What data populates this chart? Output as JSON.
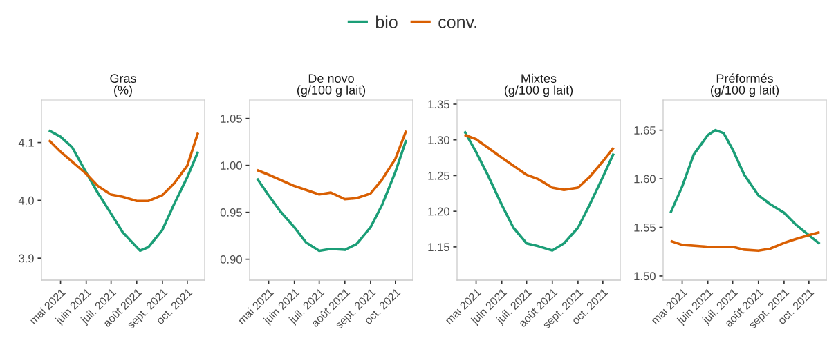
{
  "chart_data": [
    {
      "type": "line",
      "title": "Gras\n(%)",
      "legend": "top",
      "grid": false,
      "xlim": [
        "2021-04-08",
        "2021-10-22"
      ],
      "ylim": [
        3.862,
        4.1735
      ],
      "yticks": [
        {
          "value": 3.9,
          "label": "3.9"
        },
        {
          "value": 4.0,
          "label": "4.0"
        },
        {
          "value": 4.1,
          "label": "4.1"
        }
      ],
      "xticks": [
        {
          "value": "2021-05-01",
          "label": "mai 2021"
        },
        {
          "value": "2021-06-01",
          "label": "juin 2021"
        },
        {
          "value": "2021-07-01",
          "label": "juil. 2021"
        },
        {
          "value": "2021-08-01",
          "label": "août 2021"
        },
        {
          "value": "2021-09-01",
          "label": "sept. 2021"
        },
        {
          "value": "2021-10-01",
          "label": "oct. 2021"
        }
      ],
      "series": [
        {
          "name": "bio",
          "color": "#1b9e77",
          "x": [
            "2021-04-17",
            "2021-05-01",
            "2021-05-15",
            "2021-06-01",
            "2021-06-15",
            "2021-07-01",
            "2021-07-15",
            "2021-08-01",
            "2021-08-05",
            "2021-08-15",
            "2021-09-01",
            "2021-09-15",
            "2021-10-01",
            "2021-10-14"
          ],
          "values": [
            4.121,
            4.11,
            4.092,
            4.048,
            4.013,
            3.977,
            3.945,
            3.919,
            3.913,
            3.919,
            3.949,
            3.993,
            4.04,
            4.084
          ]
        },
        {
          "name": "conv.",
          "color": "#d95f02",
          "x": [
            "2021-04-17",
            "2021-05-01",
            "2021-06-01",
            "2021-06-15",
            "2021-07-01",
            "2021-07-15",
            "2021-08-01",
            "2021-08-15",
            "2021-09-01",
            "2021-09-15",
            "2021-10-01",
            "2021-10-14"
          ],
          "values": [
            4.104,
            4.084,
            4.046,
            4.025,
            4.01,
            4.006,
            3.999,
            3.999,
            4.009,
            4.029,
            4.06,
            4.117
          ]
        }
      ]
    },
    {
      "type": "line",
      "title": "De novo\n(g/100 g lait)",
      "grid": false,
      "xlim": [
        "2021-04-08",
        "2021-10-22"
      ],
      "ylim": [
        0.8777,
        1.0696
      ],
      "yticks": [
        {
          "value": 0.9,
          "label": "0.90"
        },
        {
          "value": 0.95,
          "label": "0.95"
        },
        {
          "value": 1.0,
          "label": "1.00"
        },
        {
          "value": 1.05,
          "label": "1.05"
        }
      ],
      "xticks": [
        {
          "value": "2021-05-01",
          "label": "mai 2021"
        },
        {
          "value": "2021-06-01",
          "label": "juin 2021"
        },
        {
          "value": "2021-07-01",
          "label": "juil. 2021"
        },
        {
          "value": "2021-08-01",
          "label": "août 2021"
        },
        {
          "value": "2021-09-01",
          "label": "sept. 2021"
        },
        {
          "value": "2021-10-01",
          "label": "oct. 2021"
        }
      ],
      "series": [
        {
          "name": "bio",
          "color": "#1b9e77",
          "x": [
            "2021-04-17",
            "2021-05-01",
            "2021-05-15",
            "2021-06-01",
            "2021-06-15",
            "2021-07-01",
            "2021-07-15",
            "2021-08-01",
            "2021-08-15",
            "2021-09-01",
            "2021-09-15",
            "2021-10-01",
            "2021-10-14"
          ],
          "values": [
            0.986,
            0.968,
            0.951,
            0.934,
            0.918,
            0.909,
            0.911,
            0.91,
            0.916,
            0.934,
            0.958,
            0.993,
            1.027
          ]
        },
        {
          "name": "conv.",
          "color": "#d95f02",
          "x": [
            "2021-04-17",
            "2021-05-01",
            "2021-06-01",
            "2021-07-01",
            "2021-07-15",
            "2021-08-01",
            "2021-08-15",
            "2021-09-01",
            "2021-09-15",
            "2021-10-01",
            "2021-10-14"
          ],
          "values": [
            0.995,
            0.99,
            0.978,
            0.969,
            0.971,
            0.964,
            0.965,
            0.97,
            0.985,
            1.007,
            1.037
          ]
        }
      ]
    },
    {
      "type": "line",
      "title": "Mixtes\n(g/100 g lait)",
      "grid": false,
      "xlim": [
        "2021-04-08",
        "2021-10-22"
      ],
      "ylim": [
        1.1035,
        1.3558
      ],
      "yticks": [
        {
          "value": 1.15,
          "label": "1.15"
        },
        {
          "value": 1.2,
          "label": "1.20"
        },
        {
          "value": 1.25,
          "label": "1.25"
        },
        {
          "value": 1.3,
          "label": "1.30"
        },
        {
          "value": 1.35,
          "label": "1.35"
        }
      ],
      "xticks": [
        {
          "value": "2021-05-01",
          "label": "mai 2021"
        },
        {
          "value": "2021-06-01",
          "label": "juin 2021"
        },
        {
          "value": "2021-07-01",
          "label": "juil. 2021"
        },
        {
          "value": "2021-08-01",
          "label": "août 2021"
        },
        {
          "value": "2021-09-01",
          "label": "sept. 2021"
        },
        {
          "value": "2021-10-01",
          "label": "oct. 2021"
        }
      ],
      "series": [
        {
          "name": "bio",
          "color": "#1b9e77",
          "x": [
            "2021-04-17",
            "2021-05-01",
            "2021-05-15",
            "2021-06-01",
            "2021-06-15",
            "2021-07-01",
            "2021-07-15",
            "2021-08-01",
            "2021-08-15",
            "2021-09-01",
            "2021-09-15",
            "2021-10-01",
            "2021-10-14"
          ],
          "values": [
            1.312,
            1.283,
            1.251,
            1.209,
            1.177,
            1.155,
            1.151,
            1.145,
            1.155,
            1.177,
            1.209,
            1.248,
            1.281
          ]
        },
        {
          "name": "conv.",
          "color": "#d95f02",
          "x": [
            "2021-04-17",
            "2021-05-01",
            "2021-06-01",
            "2021-07-01",
            "2021-07-15",
            "2021-08-01",
            "2021-08-15",
            "2021-09-01",
            "2021-09-15",
            "2021-10-01",
            "2021-10-14"
          ],
          "values": [
            1.307,
            1.301,
            1.275,
            1.251,
            1.245,
            1.233,
            1.23,
            1.233,
            1.248,
            1.27,
            1.289
          ]
        }
      ]
    },
    {
      "type": "line",
      "title": "Préformés\n(g/100 g lait)",
      "grid": false,
      "xlim": [
        "2021-04-08",
        "2021-10-22"
      ],
      "ylim": [
        1.4957,
        1.681
      ],
      "yticks": [
        {
          "value": 1.5,
          "label": "1.50"
        },
        {
          "value": 1.55,
          "label": "1.55"
        },
        {
          "value": 1.6,
          "label": "1.60"
        },
        {
          "value": 1.65,
          "label": "1.65"
        }
      ],
      "xticks": [
        {
          "value": "2021-05-01",
          "label": "mai 2021"
        },
        {
          "value": "2021-06-01",
          "label": "juin 2021"
        },
        {
          "value": "2021-07-01",
          "label": "juil. 2021"
        },
        {
          "value": "2021-08-01",
          "label": "août 2021"
        },
        {
          "value": "2021-09-01",
          "label": "sept. 2021"
        },
        {
          "value": "2021-10-01",
          "label": "oct. 2021"
        }
      ],
      "series": [
        {
          "name": "bio",
          "color": "#1b9e77",
          "x": [
            "2021-04-17",
            "2021-05-01",
            "2021-05-15",
            "2021-06-01",
            "2021-06-10",
            "2021-06-20",
            "2021-07-01",
            "2021-07-15",
            "2021-08-01",
            "2021-08-15",
            "2021-09-01",
            "2021-09-15",
            "2021-10-01",
            "2021-10-14"
          ],
          "values": [
            1.565,
            1.592,
            1.625,
            1.645,
            1.65,
            1.647,
            1.63,
            1.604,
            1.583,
            1.574,
            1.565,
            1.553,
            1.542,
            1.533
          ]
        },
        {
          "name": "conv.",
          "color": "#d95f02",
          "x": [
            "2021-04-17",
            "2021-05-01",
            "2021-06-01",
            "2021-07-01",
            "2021-07-15",
            "2021-08-01",
            "2021-08-15",
            "2021-09-01",
            "2021-09-15",
            "2021-10-01",
            "2021-10-14"
          ],
          "values": [
            1.536,
            1.532,
            1.53,
            1.53,
            1.527,
            1.526,
            1.528,
            1.534,
            1.538,
            1.542,
            1.545
          ]
        }
      ]
    }
  ]
}
